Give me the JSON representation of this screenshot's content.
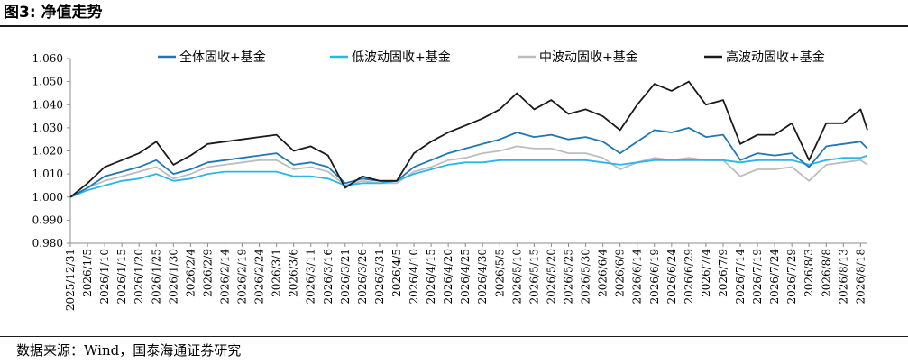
{
  "figure": {
    "title": "图3:  净值走势",
    "source": "数据来源：Wind，国泰海通证券研究"
  },
  "colors": {
    "series": [
      "#1f77b4",
      "#29b6e8",
      "#bdbdbd",
      "#1a1a1a"
    ],
    "axis": "#8c8c8c",
    "rule": "#1b1b1b"
  },
  "chart_data": {
    "type": "line",
    "title": "",
    "xlabel": "",
    "ylabel": "",
    "ylim": [
      0.98,
      1.06
    ],
    "yticks": [
      "0.980",
      "0.990",
      "1.000",
      "1.010",
      "1.020",
      "1.030",
      "1.040",
      "1.050",
      "1.060"
    ],
    "grid": false,
    "legend": "top",
    "xticks": [
      "2025/12/31",
      "2026/1/5",
      "2026/1/10",
      "2026/1/15",
      "2026/1/20",
      "2026/1/25",
      "2026/1/30",
      "2026/2/4",
      "2026/2/9",
      "2026/2/14",
      "2026/2/19",
      "2026/2/24",
      "2026/3/1",
      "2026/3/6",
      "2026/3/11",
      "2026/3/16",
      "2026/3/21",
      "2026/3/26",
      "2026/3/31",
      "2026/4/5",
      "2026/4/10",
      "2026/4/15",
      "2026/4/20",
      "2026/4/25",
      "2026/4/30",
      "2026/5/5",
      "2026/5/10",
      "2026/5/15",
      "2026/5/20",
      "2026/5/25",
      "2026/5/30",
      "2026/6/4",
      "2026/6/9",
      "2026/6/14",
      "2026/6/19",
      "2026/6/24",
      "2026/6/29",
      "2026/7/4",
      "2026/7/9",
      "2026/7/14",
      "2026/7/19",
      "2026/7/24",
      "2026/7/29",
      "2026/8/3",
      "2026/8/8",
      "2026/8/13",
      "2026/8/18"
    ],
    "x": [
      "2025/12/31",
      "2026/1/5",
      "2026/1/10",
      "2026/1/15",
      "2026/1/20",
      "2026/1/25",
      "2026/1/30",
      "2026/2/4",
      "2026/2/9",
      "2026/2/14",
      "2026/2/19",
      "2026/2/24",
      "2026/3/1",
      "2026/3/6",
      "2026/3/11",
      "2026/3/16",
      "2026/3/21",
      "2026/3/26",
      "2026/3/31",
      "2026/4/5",
      "2026/4/10",
      "2026/4/15",
      "2026/4/20",
      "2026/4/25",
      "2026/4/30",
      "2026/5/5",
      "2026/5/10",
      "2026/5/15",
      "2026/5/20",
      "2026/5/25",
      "2026/5/30",
      "2026/6/4",
      "2026/6/9",
      "2026/6/14",
      "2026/6/19",
      "2026/6/24",
      "2026/6/29",
      "2026/7/4",
      "2026/7/9",
      "2026/7/14",
      "2026/7/19",
      "2026/7/24",
      "2026/7/29",
      "2026/8/3",
      "2026/8/8",
      "2026/8/13",
      "2026/8/18",
      "2026/8/20"
    ],
    "series": [
      {
        "name": "全体固收+基金",
        "values": [
          1.0,
          1.004,
          1.009,
          1.011,
          1.013,
          1.016,
          1.01,
          1.012,
          1.015,
          1.016,
          1.017,
          1.018,
          1.019,
          1.014,
          1.015,
          1.013,
          1.006,
          1.008,
          1.007,
          1.007,
          1.013,
          1.016,
          1.019,
          1.021,
          1.023,
          1.025,
          1.028,
          1.026,
          1.027,
          1.025,
          1.026,
          1.024,
          1.019,
          1.024,
          1.029,
          1.028,
          1.03,
          1.026,
          1.027,
          1.016,
          1.019,
          1.018,
          1.019,
          1.013,
          1.022,
          1.023,
          1.024,
          1.021
        ]
      },
      {
        "name": "低波动固收+基金",
        "values": [
          1.0,
          1.003,
          1.005,
          1.007,
          1.008,
          1.01,
          1.007,
          1.008,
          1.01,
          1.011,
          1.011,
          1.011,
          1.011,
          1.009,
          1.009,
          1.008,
          1.005,
          1.006,
          1.006,
          1.007,
          1.01,
          1.012,
          1.014,
          1.015,
          1.015,
          1.016,
          1.016,
          1.016,
          1.016,
          1.016,
          1.016,
          1.015,
          1.014,
          1.015,
          1.016,
          1.016,
          1.016,
          1.016,
          1.016,
          1.015,
          1.016,
          1.016,
          1.016,
          1.014,
          1.016,
          1.017,
          1.017,
          1.018
        ]
      },
      {
        "name": "中波动固收+基金",
        "values": [
          1.0,
          1.004,
          1.007,
          1.009,
          1.011,
          1.013,
          1.008,
          1.01,
          1.013,
          1.014,
          1.015,
          1.016,
          1.016,
          1.012,
          1.013,
          1.011,
          1.005,
          1.007,
          1.006,
          1.006,
          1.011,
          1.013,
          1.016,
          1.017,
          1.019,
          1.02,
          1.022,
          1.021,
          1.021,
          1.019,
          1.019,
          1.017,
          1.012,
          1.015,
          1.017,
          1.016,
          1.017,
          1.016,
          1.016,
          1.009,
          1.012,
          1.012,
          1.013,
          1.007,
          1.014,
          1.015,
          1.016,
          1.014
        ]
      },
      {
        "name": "高波动固收+基金",
        "values": [
          1.0,
          1.006,
          1.013,
          1.016,
          1.019,
          1.024,
          1.014,
          1.018,
          1.023,
          1.024,
          1.025,
          1.026,
          1.027,
          1.02,
          1.022,
          1.018,
          1.004,
          1.009,
          1.007,
          1.007,
          1.019,
          1.024,
          1.028,
          1.031,
          1.034,
          1.038,
          1.045,
          1.038,
          1.042,
          1.036,
          1.038,
          1.035,
          1.029,
          1.04,
          1.049,
          1.046,
          1.05,
          1.04,
          1.042,
          1.023,
          1.027,
          1.027,
          1.032,
          1.016,
          1.032,
          1.032,
          1.038,
          1.029
        ]
      }
    ]
  }
}
